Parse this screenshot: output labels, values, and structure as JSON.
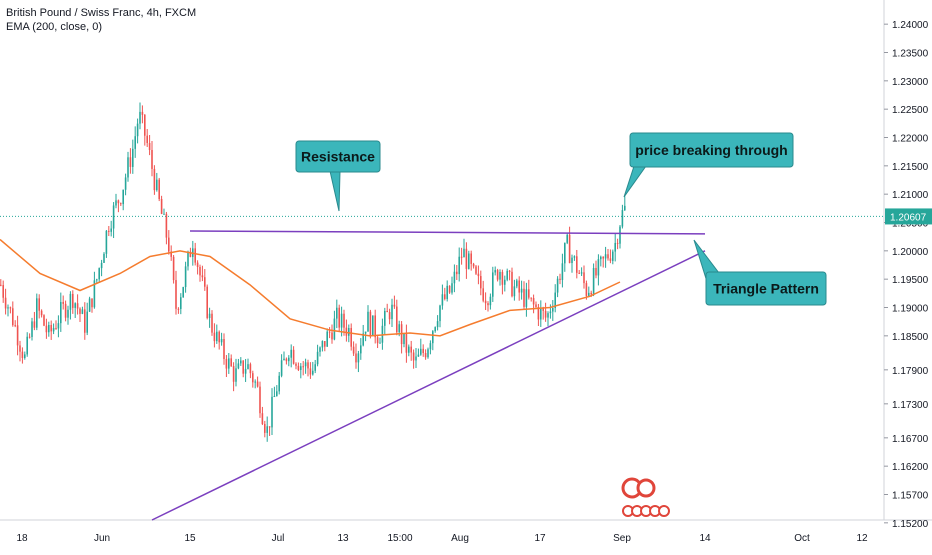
{
  "chart_data": {
    "type": "candlestick",
    "title": "British Pound / Swiss Franc, 4h, FXCM",
    "indicator": "EMA (200, close, 0)",
    "colors": {
      "up": "#26a69a",
      "down": "#ef5350",
      "ema": "#f57c2e",
      "trendline": "#7b3fbf",
      "price_line": "#26a69a",
      "callout": "#3bb6bb"
    },
    "ylim": [
      1.1525,
      1.2425
    ],
    "y_ticks": [
      "1.24000",
      "1.23500",
      "1.23000",
      "1.22500",
      "1.22000",
      "1.21500",
      "1.21000",
      "1.20500",
      "1.20000",
      "1.19500",
      "1.19000",
      "1.18500",
      "1.17900",
      "1.17300",
      "1.16700",
      "1.16200",
      "1.15700",
      "1.15200"
    ],
    "x_ticks": [
      "18",
      "Jun",
      "15",
      "Jul",
      "13",
      "15:00",
      "Aug",
      "17",
      "Sep",
      "14",
      "Oct",
      "12"
    ],
    "last_price": "1.20607",
    "closes": [
      [
        0,
        1.194
      ],
      [
        12,
        1.188
      ],
      [
        24,
        1.181
      ],
      [
        36,
        1.19
      ],
      [
        48,
        1.185
      ],
      [
        60,
        1.189
      ],
      [
        72,
        1.192
      ],
      [
        84,
        1.187
      ],
      [
        96,
        1.195
      ],
      [
        108,
        1.205
      ],
      [
        120,
        1.21
      ],
      [
        132,
        1.218
      ],
      [
        138,
        1.224
      ],
      [
        145,
        1.22
      ],
      [
        152,
        1.214
      ],
      [
        160,
        1.207
      ],
      [
        168,
        1.201
      ],
      [
        175,
        1.19
      ],
      [
        182,
        1.194
      ],
      [
        192,
        1.202
      ],
      [
        200,
        1.195
      ],
      [
        210,
        1.187
      ],
      [
        222,
        1.182
      ],
      [
        234,
        1.178
      ],
      [
        246,
        1.18
      ],
      [
        256,
        1.176
      ],
      [
        266,
        1.168
      ],
      [
        276,
        1.176
      ],
      [
        288,
        1.183
      ],
      [
        300,
        1.18
      ],
      [
        312,
        1.179
      ],
      [
        324,
        1.184
      ],
      [
        336,
        1.188
      ],
      [
        348,
        1.186
      ],
      [
        356,
        1.182
      ],
      [
        366,
        1.188
      ],
      [
        378,
        1.185
      ],
      [
        390,
        1.19
      ],
      [
        402,
        1.184
      ],
      [
        414,
        1.18
      ],
      [
        426,
        1.183
      ],
      [
        438,
        1.19
      ],
      [
        450,
        1.193
      ],
      [
        462,
        1.2
      ],
      [
        474,
        1.195
      ],
      [
        486,
        1.192
      ],
      [
        498,
        1.197
      ],
      [
        510,
        1.194
      ],
      [
        522,
        1.192
      ],
      [
        534,
        1.19
      ],
      [
        546,
        1.188
      ],
      [
        556,
        1.194
      ],
      [
        566,
        1.201
      ],
      [
        576,
        1.197
      ],
      [
        586,
        1.193
      ],
      [
        596,
        1.196
      ],
      [
        606,
        1.199
      ],
      [
        614,
        1.201
      ],
      [
        620,
        1.206
      ],
      [
        626,
        1.208
      ]
    ],
    "ema_200": [
      [
        0,
        1.202
      ],
      [
        40,
        1.196
      ],
      [
        80,
        1.193
      ],
      [
        120,
        1.196
      ],
      [
        150,
        1.199
      ],
      [
        180,
        1.2
      ],
      [
        210,
        1.199
      ],
      [
        250,
        1.194
      ],
      [
        290,
        1.188
      ],
      [
        330,
        1.186
      ],
      [
        370,
        1.185
      ],
      [
        410,
        1.1855
      ],
      [
        440,
        1.185
      ],
      [
        470,
        1.187
      ],
      [
        510,
        1.1895
      ],
      [
        550,
        1.19
      ],
      [
        590,
        1.192
      ],
      [
        620,
        1.1945
      ]
    ],
    "resistance": {
      "x": [
        190,
        705
      ],
      "y": [
        1.2035,
        1.203
      ]
    },
    "support": {
      "x": [
        152,
        705
      ],
      "y": [
        1.1525,
        1.2
      ]
    },
    "annotations": {
      "resistance": "Resistance",
      "breakout": "price breaking through",
      "pattern": "Triangle  Pattern"
    }
  },
  "watermark_text": "C"
}
